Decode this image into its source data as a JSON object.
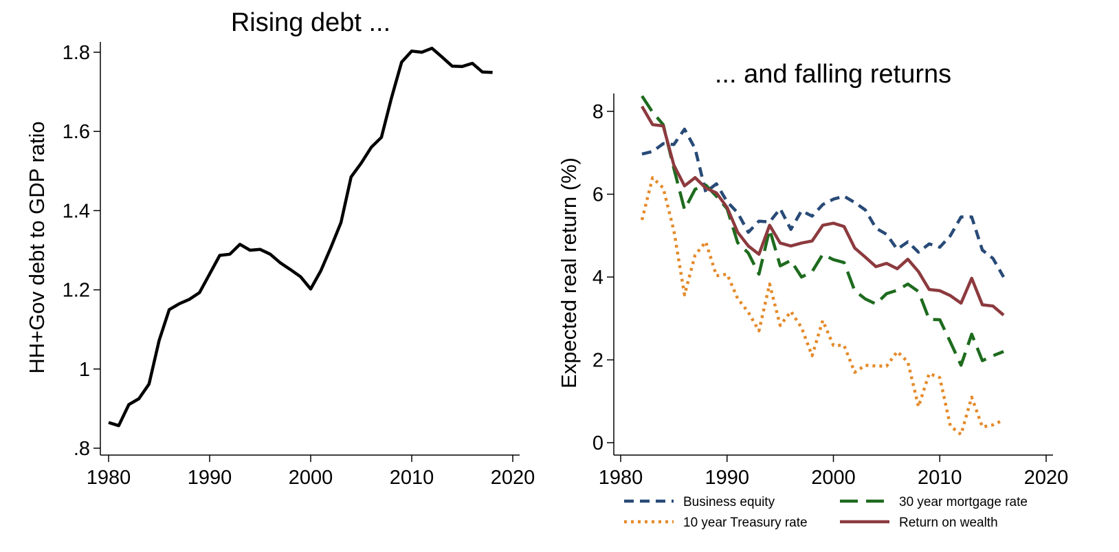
{
  "chart_data": [
    {
      "type": "line",
      "title": "Rising debt ...",
      "xlabel": "",
      "ylabel": "HH+Gov debt to GDP ratio",
      "xlim": [
        1980,
        2020
      ],
      "ylim": [
        0.8,
        1.82
      ],
      "x_ticks": [
        1980,
        1990,
        2000,
        2010,
        2020
      ],
      "x_tick_labels": [
        "1980",
        "1990",
        "2000",
        "2010",
        "2020"
      ],
      "y_ticks": [
        0.8,
        1.0,
        1.2,
        1.4,
        1.6,
        1.8
      ],
      "y_tick_labels": [
        ".8",
        "1",
        "1.2",
        "1.4",
        "1.6",
        "1.8"
      ],
      "grid": false,
      "series": [
        {
          "color": "#000000",
          "style": "solid",
          "x": [
            1980,
            1981,
            1982,
            1983,
            1984,
            1985,
            1986,
            1987,
            1988,
            1989,
            1990,
            1991,
            1992,
            1993,
            1994,
            1995,
            1996,
            1997,
            1998,
            1999,
            2000,
            2001,
            2002,
            2003,
            2004,
            2005,
            2006,
            2007,
            2008,
            2009,
            2010,
            2011,
            2012,
            2013,
            2014,
            2015,
            2016,
            2017,
            2018
          ],
          "values": [
            0.865,
            0.857,
            0.91,
            0.925,
            0.962,
            1.072,
            1.15,
            1.165,
            1.176,
            1.193,
            1.24,
            1.287,
            1.29,
            1.315,
            1.3,
            1.302,
            1.29,
            1.268,
            1.251,
            1.233,
            1.202,
            1.248,
            1.307,
            1.37,
            1.485,
            1.52,
            1.56,
            1.585,
            1.685,
            1.775,
            1.803,
            1.8,
            1.81,
            1.788,
            1.765,
            1.764,
            1.772,
            1.75,
            1.749
          ]
        }
      ]
    },
    {
      "type": "line",
      "title": "... and falling returns",
      "xlabel": "",
      "ylabel": "Expected real return (%)",
      "xlim": [
        1980,
        2020
      ],
      "ylim": [
        0,
        8.6
      ],
      "x_ticks": [
        1980,
        1990,
        2000,
        2010,
        2020
      ],
      "x_tick_labels": [
        "1980",
        "1990",
        "2000",
        "2010",
        "2020"
      ],
      "y_ticks": [
        0,
        2,
        4,
        6,
        8
      ],
      "y_tick_labels": [
        "0",
        "2",
        "4",
        "6",
        "8"
      ],
      "grid": false,
      "legend_position": "bottom",
      "x": [
        1982,
        1983,
        1984,
        1985,
        1986,
        1987,
        1988,
        1989,
        1990,
        1991,
        1992,
        1993,
        1994,
        1995,
        1996,
        1997,
        1998,
        1999,
        2000,
        2001,
        2002,
        2003,
        2004,
        2005,
        2006,
        2007,
        2008,
        2009,
        2010,
        2011,
        2012,
        2013,
        2014,
        2015,
        2016
      ],
      "series": [
        {
          "name": "Business equity",
          "color": "#284a77",
          "style": "dash",
          "values": [
            6.97,
            7.03,
            7.22,
            7.2,
            7.57,
            7.1,
            6.05,
            6.25,
            5.82,
            5.55,
            5.08,
            5.35,
            5.33,
            5.65,
            5.15,
            5.6,
            5.47,
            5.75,
            5.88,
            5.95,
            5.8,
            5.62,
            5.18,
            5.03,
            4.67,
            4.85,
            4.6,
            4.8,
            4.72,
            5.0,
            5.45,
            5.45,
            4.65,
            4.45,
            4.0
          ]
        },
        {
          "name": "30 year mortgage rate",
          "color": "#1e6b1e",
          "style": "longdash",
          "values": [
            8.37,
            7.98,
            7.68,
            6.62,
            5.63,
            6.12,
            6.22,
            5.95,
            5.65,
            4.83,
            4.58,
            4.07,
            5.15,
            4.27,
            4.4,
            4.0,
            4.13,
            4.55,
            4.42,
            4.35,
            3.67,
            3.47,
            3.35,
            3.6,
            3.68,
            3.83,
            3.65,
            2.98,
            2.97,
            2.43,
            1.87,
            2.62,
            1.98,
            2.1,
            2.2
          ]
        },
        {
          "name": "10 year Treasury rate",
          "color": "#e48a2a",
          "style": "dot",
          "values": [
            5.38,
            6.4,
            6.15,
            5.12,
            3.57,
            4.53,
            4.85,
            4.03,
            4.07,
            3.48,
            3.15,
            2.7,
            3.83,
            2.83,
            3.17,
            2.78,
            2.1,
            2.95,
            2.35,
            2.35,
            1.7,
            1.87,
            1.85,
            1.85,
            2.2,
            1.95,
            0.87,
            1.67,
            1.57,
            0.4,
            0.2,
            1.1,
            0.38,
            0.43,
            0.55
          ]
        },
        {
          "name": "Return on wealth",
          "color": "#8c3a3e",
          "style": "solid",
          "values": [
            8.12,
            7.68,
            7.65,
            6.7,
            6.2,
            6.4,
            6.15,
            6.03,
            5.68,
            5.08,
            4.75,
            4.55,
            5.25,
            4.82,
            4.75,
            4.82,
            4.87,
            5.25,
            5.3,
            5.22,
            4.7,
            4.48,
            4.25,
            4.33,
            4.2,
            4.43,
            4.13,
            3.7,
            3.67,
            3.55,
            3.37,
            3.97,
            3.33,
            3.3,
            3.08
          ]
        }
      ]
    }
  ]
}
